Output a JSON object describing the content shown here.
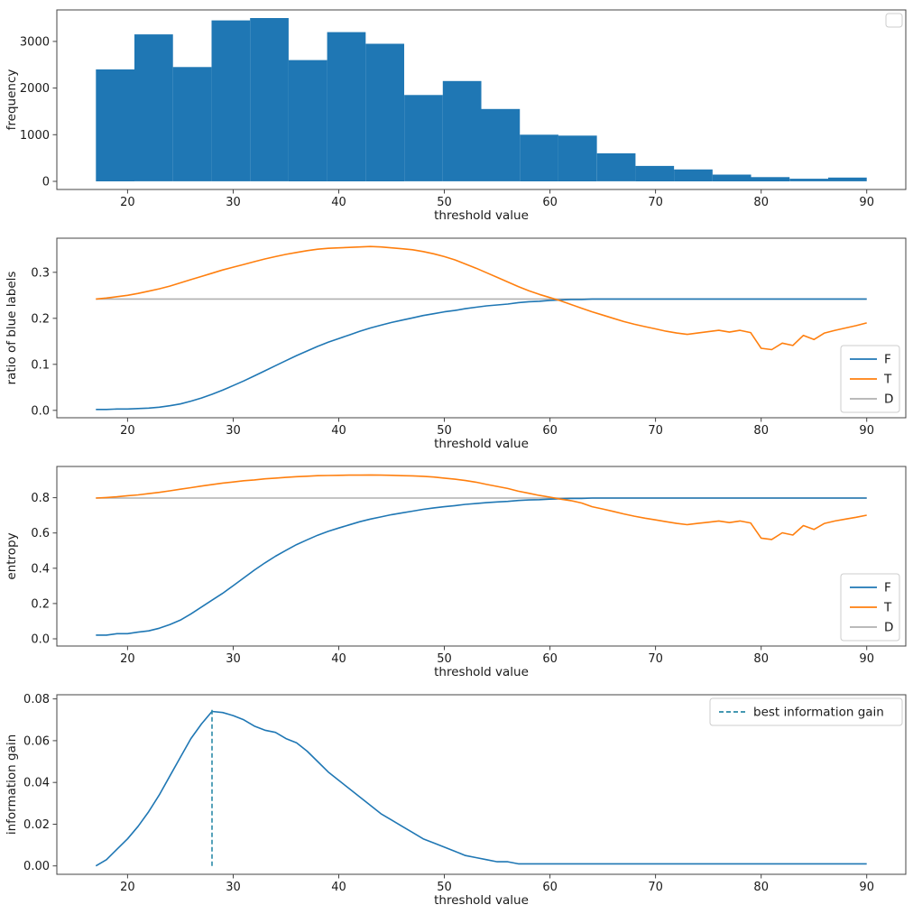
{
  "palette": {
    "blue": "#1f77b4",
    "orange": "#ff7f0e",
    "gray": "#b0b0b0",
    "teal": "#2b8aa8",
    "spine": "#444444",
    "text": "#1a1a1a",
    "legend_border": "#cccccc",
    "background": "#ffffff"
  },
  "chart_data": [
    {
      "type": "histogram",
      "title": "",
      "xlabel": "threshold value",
      "ylabel": "frequency",
      "xlim": [
        13.3,
        93.7
      ],
      "ylim": [
        -175,
        3675
      ],
      "xticks": [
        20,
        30,
        40,
        50,
        60,
        70,
        80,
        90
      ],
      "yticks": [
        0,
        1000,
        2000,
        3000
      ],
      "ydec": 0,
      "bin_start": 17,
      "bin_width": 3.65,
      "color": "blue",
      "values": [
        2400,
        3150,
        2450,
        3450,
        3500,
        2600,
        3200,
        2950,
        1850,
        2150,
        1550,
        1000,
        980,
        600,
        330,
        255,
        145,
        90,
        55,
        80
      ],
      "legend": {
        "loc": "upper-right",
        "empty": true,
        "items": []
      }
    },
    {
      "type": "line",
      "title": "",
      "xlabel": "threshold value",
      "ylabel": "ratio of blue labels",
      "xlim": [
        13.3,
        93.7
      ],
      "ylim": [
        -0.016,
        0.374
      ],
      "xticks": [
        20,
        30,
        40,
        50,
        60,
        70,
        80,
        90
      ],
      "yticks": [
        0.0,
        0.1,
        0.2,
        0.3
      ],
      "ydec": 1,
      "x_start": 17,
      "x_step": 1,
      "series": [
        {
          "name": "D",
          "color": "gray",
          "const": 0.242,
          "x_end": 90
        },
        {
          "name": "F",
          "color": "blue",
          "y": [
            0.002,
            0.002,
            0.003,
            0.003,
            0.004,
            0.005,
            0.007,
            0.01,
            0.014,
            0.02,
            0.027,
            0.035,
            0.044,
            0.054,
            0.064,
            0.075,
            0.086,
            0.097,
            0.108,
            0.119,
            0.129,
            0.139,
            0.148,
            0.156,
            0.164,
            0.172,
            0.179,
            0.185,
            0.191,
            0.196,
            0.201,
            0.206,
            0.21,
            0.214,
            0.217,
            0.221,
            0.224,
            0.227,
            0.229,
            0.231,
            0.234,
            0.236,
            0.237,
            0.239,
            0.24,
            0.241,
            0.241,
            0.242,
            0.242,
            0.242,
            0.242,
            0.242,
            0.242,
            0.242,
            0.242,
            0.242,
            0.242,
            0.242,
            0.242,
            0.242,
            0.242,
            0.242,
            0.242,
            0.242,
            0.242,
            0.242,
            0.242,
            0.242,
            0.242,
            0.242,
            0.242,
            0.242,
            0.242,
            0.242
          ]
        },
        {
          "name": "T",
          "color": "orange",
          "y": [
            0.242,
            0.244,
            0.247,
            0.25,
            0.254,
            0.259,
            0.264,
            0.27,
            0.277,
            0.284,
            0.291,
            0.298,
            0.305,
            0.311,
            0.317,
            0.323,
            0.329,
            0.334,
            0.339,
            0.343,
            0.347,
            0.35,
            0.352,
            0.353,
            0.354,
            0.355,
            0.356,
            0.355,
            0.353,
            0.351,
            0.349,
            0.345,
            0.34,
            0.334,
            0.327,
            0.318,
            0.309,
            0.299,
            0.289,
            0.279,
            0.269,
            0.26,
            0.252,
            0.245,
            0.238,
            0.23,
            0.222,
            0.214,
            0.207,
            0.2,
            0.193,
            0.187,
            0.182,
            0.177,
            0.172,
            0.168,
            0.165,
            0.168,
            0.171,
            0.174,
            0.17,
            0.174,
            0.169,
            0.135,
            0.132,
            0.146,
            0.141,
            0.163,
            0.154,
            0.168,
            0.174,
            0.179,
            0.184,
            0.19
          ]
        }
      ],
      "legend": {
        "loc": "lower-right",
        "items": [
          {
            "label": "F",
            "color": "blue"
          },
          {
            "label": "T",
            "color": "orange"
          },
          {
            "label": "D",
            "color": "gray"
          }
        ]
      }
    },
    {
      "type": "line",
      "title": "",
      "xlabel": "threshold value",
      "ylabel": "entropy",
      "xlim": [
        13.3,
        93.7
      ],
      "ylim": [
        -0.041,
        0.977
      ],
      "xticks": [
        20,
        30,
        40,
        50,
        60,
        70,
        80,
        90
      ],
      "yticks": [
        0.0,
        0.2,
        0.4,
        0.6,
        0.8
      ],
      "ydec": 1,
      "x_start": 17,
      "x_step": 1,
      "series": [
        {
          "name": "D",
          "color": "gray",
          "const": 0.798,
          "x_end": 90
        },
        {
          "name": "F",
          "color": "blue",
          "y": [
            0.021,
            0.021,
            0.029,
            0.029,
            0.038,
            0.045,
            0.06,
            0.081,
            0.106,
            0.141,
            0.18,
            0.219,
            0.258,
            0.301,
            0.345,
            0.389,
            0.43,
            0.468,
            0.502,
            0.534,
            0.561,
            0.587,
            0.609,
            0.628,
            0.646,
            0.664,
            0.679,
            0.691,
            0.704,
            0.714,
            0.724,
            0.734,
            0.742,
            0.749,
            0.755,
            0.762,
            0.767,
            0.772,
            0.776,
            0.779,
            0.784,
            0.787,
            0.789,
            0.792,
            0.794,
            0.796,
            0.796,
            0.798,
            0.798,
            0.798,
            0.798,
            0.798,
            0.798,
            0.798,
            0.798,
            0.798,
            0.798,
            0.798,
            0.798,
            0.798,
            0.798,
            0.798,
            0.798,
            0.798,
            0.798,
            0.798,
            0.798,
            0.798,
            0.798,
            0.798,
            0.798,
            0.798,
            0.798,
            0.798
          ]
        },
        {
          "name": "T",
          "color": "orange",
          "y": [
            0.798,
            0.801,
            0.805,
            0.811,
            0.816,
            0.823,
            0.83,
            0.839,
            0.848,
            0.857,
            0.866,
            0.874,
            0.883,
            0.889,
            0.896,
            0.901,
            0.907,
            0.911,
            0.915,
            0.919,
            0.922,
            0.925,
            0.926,
            0.927,
            0.928,
            0.928,
            0.929,
            0.928,
            0.927,
            0.925,
            0.924,
            0.921,
            0.917,
            0.911,
            0.905,
            0.897,
            0.888,
            0.875,
            0.864,
            0.852,
            0.837,
            0.825,
            0.813,
            0.803,
            0.792,
            0.783,
            0.77,
            0.749,
            0.736,
            0.722,
            0.708,
            0.695,
            0.684,
            0.674,
            0.664,
            0.654,
            0.647,
            0.654,
            0.661,
            0.668,
            0.659,
            0.668,
            0.657,
            0.571,
            0.563,
            0.601,
            0.588,
            0.642,
            0.62,
            0.654,
            0.668,
            0.679,
            0.689,
            0.701
          ]
        }
      ],
      "legend": {
        "loc": "lower-right",
        "items": [
          {
            "label": "F",
            "color": "blue"
          },
          {
            "label": "T",
            "color": "orange"
          },
          {
            "label": "D",
            "color": "gray"
          }
        ]
      }
    },
    {
      "type": "line",
      "title": "",
      "xlabel": "threshold value",
      "ylabel": "information gain",
      "xlim": [
        13.3,
        93.7
      ],
      "ylim": [
        -0.004,
        0.082
      ],
      "xticks": [
        20,
        30,
        40,
        50,
        60,
        70,
        80,
        90
      ],
      "yticks": [
        0.0,
        0.02,
        0.04,
        0.06,
        0.08
      ],
      "ydec": 2,
      "x_start": 17,
      "x_step": 1,
      "series": [
        {
          "name": "information gain",
          "color": "blue",
          "y": [
            0.0,
            0.003,
            0.008,
            0.013,
            0.019,
            0.026,
            0.034,
            0.043,
            0.052,
            0.061,
            0.068,
            0.074,
            0.0735,
            0.072,
            0.07,
            0.067,
            0.065,
            0.064,
            0.061,
            0.059,
            0.055,
            0.05,
            0.045,
            0.041,
            0.037,
            0.033,
            0.029,
            0.025,
            0.022,
            0.019,
            0.016,
            0.013,
            0.011,
            0.009,
            0.007,
            0.005,
            0.004,
            0.003,
            0.002,
            0.002,
            0.001,
            0.001,
            0.001,
            0.001,
            0.001,
            0.001,
            0.001,
            0.001,
            0.001,
            0.001,
            0.001,
            0.001,
            0.001,
            0.001,
            0.001,
            0.001,
            0.001,
            0.001,
            0.001,
            0.001,
            0.001,
            0.001,
            0.001,
            0.001,
            0.001,
            0.001,
            0.001,
            0.001,
            0.001,
            0.001,
            0.001,
            0.001,
            0.001,
            0.001
          ]
        }
      ],
      "vline": {
        "x": 28,
        "y0": 0.0,
        "y1": 0.0755,
        "color": "teal",
        "dash": true
      },
      "legend": {
        "loc": "upper-right",
        "items": [
          {
            "label": "best information gain",
            "color": "teal",
            "dash": true
          }
        ]
      }
    }
  ]
}
